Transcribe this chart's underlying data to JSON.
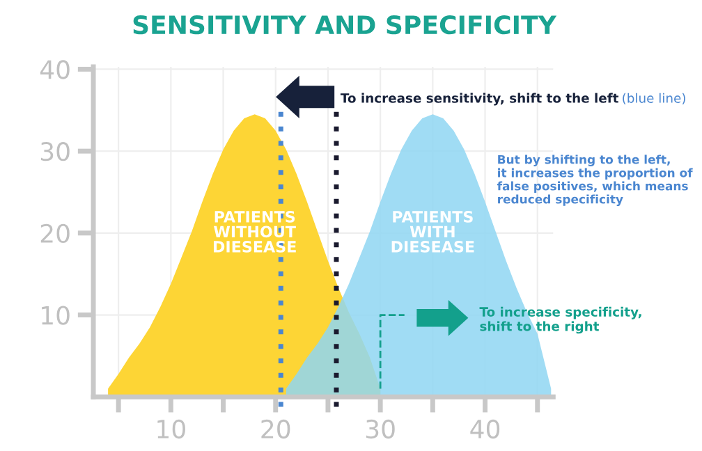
{
  "chart_data": {
    "type": "area",
    "title": "SENSITIVITY AND SPECIFICITY",
    "series": [
      {
        "name": "PATIENTS WITHOUT DIESEASE",
        "color": "#fdd535",
        "x": [
          4,
          5,
          6,
          7,
          8,
          9,
          10,
          11,
          12,
          13,
          14,
          15,
          16,
          17,
          18,
          19,
          20,
          21,
          22,
          23,
          24,
          25,
          26,
          27,
          28,
          29,
          30
        ],
        "values": [
          1,
          2.8,
          4.8,
          6.5,
          8.5,
          11,
          13.8,
          17,
          20.2,
          23.8,
          27.2,
          30.2,
          32.5,
          34,
          34.5,
          34,
          32.5,
          30.2,
          27.2,
          23.8,
          20.2,
          16.6,
          13.3,
          10.3,
          7.7,
          4.8,
          1
        ]
      },
      {
        "name": "PATIENTS WITH DIESEASE",
        "color": "#8fd6f2",
        "x": [
          21,
          22,
          23,
          24,
          25,
          26,
          27,
          28,
          29,
          30,
          31,
          32,
          33,
          34,
          35,
          36,
          37,
          38,
          39,
          40,
          41,
          42,
          43,
          44,
          45,
          46.3
        ],
        "values": [
          1,
          2.8,
          4.8,
          6.5,
          8.5,
          11,
          13.8,
          17,
          20.2,
          23.8,
          27.2,
          30.2,
          32.5,
          34,
          34.5,
          34,
          32.5,
          30.2,
          27.2,
          23.8,
          20.2,
          16.6,
          13.3,
          10.3,
          7.7,
          1
        ]
      }
    ],
    "xlim": [
      2.6,
      46.5
    ],
    "ylim": [
      0,
      40.3
    ],
    "xticks": [
      {
        "value": 5,
        "label": null
      },
      10,
      {
        "value": 15,
        "label": null
      },
      20,
      {
        "value": 25,
        "label": null
      },
      30,
      {
        "value": 35,
        "label": null
      },
      40,
      {
        "value": 45,
        "label": null
      }
    ],
    "yticks": [
      10,
      20,
      30,
      40
    ],
    "grid": true,
    "ref_lines": [
      {
        "axis": "x",
        "value": 20.5,
        "color": "#4a86d0",
        "line_style": "dotted"
      },
      {
        "axis": "x",
        "value": 25.8,
        "color": "#1a1a2e",
        "line_style": "dotted"
      }
    ],
    "annotations": [
      "To increase sensitivity, shift to the left",
      "(blue line)",
      "But by shifting to the left, it increases the proportion of false positives, which means reduced specificity",
      "To increase specificity, shift to the right"
    ]
  }
}
